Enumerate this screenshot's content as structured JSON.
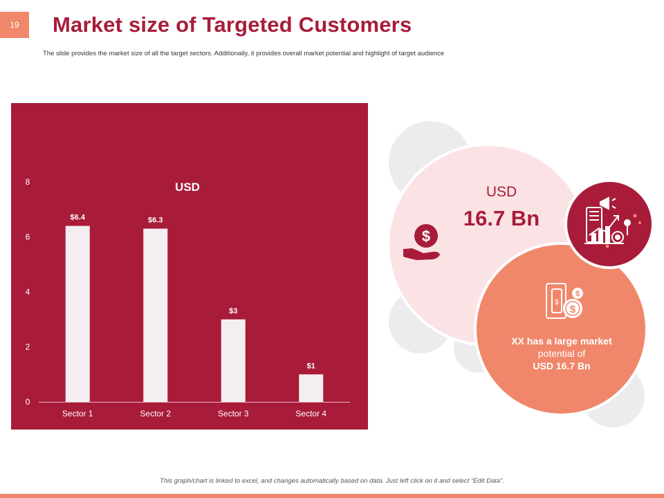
{
  "slide": {
    "page_number": "19",
    "title": "Market size of Targeted Customers",
    "subtitle": "The slide provides the market size of all the target sectors. Additionally, it provides overall market potential and highlight of target audience",
    "footer_note": "This graph/chart is linked to excel, and changes automatically based on data. Just left click on it and select “Edit Data”."
  },
  "highlight": {
    "currency": "USD",
    "value": "16.7 Bn",
    "text_line1": "XX has a large market",
    "text_line2": "potential of",
    "text_line3": "USD 16.7 Bn"
  },
  "icons": {
    "money_hand": "dollar-hand-icon",
    "growth": "growth-chart-icon",
    "cash": "cash-coins-icon"
  },
  "colors": {
    "brand": "#a81c3a",
    "accent": "#f0876a",
    "light_pink": "#fbe3e5",
    "bar": "#f5eef0"
  },
  "chart_data": {
    "type": "bar",
    "title": "USD",
    "categories": [
      "Sector 1",
      "Sector 2",
      "Sector 3",
      "Sector 4"
    ],
    "values": [
      6.4,
      6.3,
      3,
      1
    ],
    "data_labels": [
      "$6.4",
      "$6.3",
      "$3",
      "$1"
    ],
    "yticks": [
      0,
      2,
      4,
      6,
      8
    ],
    "ylim": [
      0,
      8
    ],
    "grid": false,
    "legend": "none"
  }
}
